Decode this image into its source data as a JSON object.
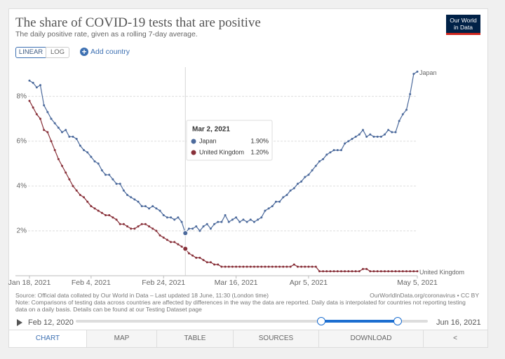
{
  "header": {
    "title": "The share of COVID-19 tests that are positive",
    "subtitle": "The daily positive rate, given as a rolling 7-day average.",
    "logo": [
      "Our World",
      "in Data"
    ]
  },
  "controls": {
    "scale_buttons": [
      "LINEAR",
      "LOG"
    ],
    "add_country": "Add country"
  },
  "chart_data": {
    "type": "line",
    "x": [
      "2021-01-18",
      "2021-01-19",
      "2021-01-20",
      "2021-01-21",
      "2021-01-22",
      "2021-01-23",
      "2021-01-24",
      "2021-01-25",
      "2021-01-26",
      "2021-01-27",
      "2021-01-28",
      "2021-01-29",
      "2021-01-30",
      "2021-01-31",
      "2021-02-01",
      "2021-02-02",
      "2021-02-03",
      "2021-02-04",
      "2021-02-05",
      "2021-02-06",
      "2021-02-07",
      "2021-02-08",
      "2021-02-09",
      "2021-02-10",
      "2021-02-11",
      "2021-02-12",
      "2021-02-13",
      "2021-02-14",
      "2021-02-15",
      "2021-02-16",
      "2021-02-17",
      "2021-02-18",
      "2021-02-19",
      "2021-02-20",
      "2021-02-21",
      "2021-02-22",
      "2021-02-23",
      "2021-02-24",
      "2021-02-25",
      "2021-02-26",
      "2021-02-27",
      "2021-02-28",
      "2021-03-01",
      "2021-03-02",
      "2021-03-03",
      "2021-03-04",
      "2021-03-05",
      "2021-03-06",
      "2021-03-07",
      "2021-03-08",
      "2021-03-09",
      "2021-03-10",
      "2021-03-11",
      "2021-03-12",
      "2021-03-13",
      "2021-03-14",
      "2021-03-15",
      "2021-03-16",
      "2021-03-17",
      "2021-03-18",
      "2021-03-19",
      "2021-03-20",
      "2021-03-21",
      "2021-03-22",
      "2021-03-23",
      "2021-03-24",
      "2021-03-25",
      "2021-03-26",
      "2021-03-27",
      "2021-03-28",
      "2021-03-29",
      "2021-03-30",
      "2021-03-31",
      "2021-04-01",
      "2021-04-02",
      "2021-04-03",
      "2021-04-04",
      "2021-04-05",
      "2021-04-06",
      "2021-04-07",
      "2021-04-08",
      "2021-04-09",
      "2021-04-10",
      "2021-04-11",
      "2021-04-12",
      "2021-04-13",
      "2021-04-14",
      "2021-04-15",
      "2021-04-16",
      "2021-04-17",
      "2021-04-18",
      "2021-04-19",
      "2021-04-20",
      "2021-04-21",
      "2021-04-22",
      "2021-04-23",
      "2021-04-24",
      "2021-04-25",
      "2021-04-26",
      "2021-04-27",
      "2021-04-28",
      "2021-04-29",
      "2021-04-30",
      "2021-05-01",
      "2021-05-02",
      "2021-05-03",
      "2021-05-04",
      "2021-05-05"
    ],
    "series": [
      {
        "name": "Japan",
        "color": "#4c6a9c",
        "values": [
          8.7,
          8.6,
          8.4,
          8.5,
          7.6,
          7.3,
          7.0,
          6.8,
          6.6,
          6.4,
          6.5,
          6.2,
          6.2,
          6.1,
          5.8,
          5.6,
          5.5,
          5.3,
          5.1,
          5.0,
          4.7,
          4.5,
          4.5,
          4.3,
          4.1,
          4.1,
          3.8,
          3.6,
          3.5,
          3.4,
          3.3,
          3.1,
          3.1,
          3.0,
          3.1,
          3.0,
          2.9,
          2.7,
          2.6,
          2.6,
          2.5,
          2.6,
          2.4,
          1.9,
          2.1,
          2.1,
          2.2,
          2.0,
          2.2,
          2.3,
          2.1,
          2.3,
          2.4,
          2.4,
          2.7,
          2.4,
          2.5,
          2.6,
          2.4,
          2.5,
          2.4,
          2.5,
          2.4,
          2.5,
          2.6,
          2.9,
          3.0,
          3.1,
          3.3,
          3.3,
          3.5,
          3.6,
          3.8,
          3.9,
          4.1,
          4.2,
          4.4,
          4.5,
          4.7,
          4.9,
          5.1,
          5.2,
          5.4,
          5.5,
          5.6,
          5.6,
          5.6,
          5.9,
          6.0,
          6.1,
          6.2,
          6.3,
          6.5,
          6.2,
          6.3,
          6.2,
          6.2,
          6.2,
          6.3,
          6.5,
          6.4,
          6.4,
          6.9,
          7.2,
          7.4,
          8.1,
          9.0,
          9.1
        ]
      },
      {
        "name": "United Kingdom",
        "color": "#883039",
        "values": [
          7.8,
          7.5,
          7.2,
          7.0,
          6.5,
          6.4,
          6.0,
          5.6,
          5.2,
          4.9,
          4.6,
          4.3,
          4.0,
          3.8,
          3.6,
          3.5,
          3.3,
          3.1,
          3.0,
          2.9,
          2.8,
          2.7,
          2.7,
          2.6,
          2.5,
          2.3,
          2.3,
          2.2,
          2.1,
          2.1,
          2.2,
          2.3,
          2.3,
          2.2,
          2.1,
          2.0,
          1.8,
          1.7,
          1.6,
          1.5,
          1.5,
          1.4,
          1.3,
          1.2,
          1.0,
          0.9,
          0.8,
          0.8,
          0.7,
          0.6,
          0.6,
          0.5,
          0.5,
          0.4,
          0.4,
          0.4,
          0.4,
          0.4,
          0.4,
          0.4,
          0.4,
          0.4,
          0.4,
          0.4,
          0.4,
          0.4,
          0.4,
          0.4,
          0.4,
          0.4,
          0.4,
          0.4,
          0.4,
          0.5,
          0.4,
          0.4,
          0.4,
          0.4,
          0.4,
          0.4,
          0.2,
          0.2,
          0.2,
          0.2,
          0.2,
          0.2,
          0.2,
          0.2,
          0.2,
          0.2,
          0.2,
          0.2,
          0.3,
          0.3,
          0.2,
          0.2,
          0.2,
          0.2,
          0.2,
          0.2,
          0.2,
          0.2,
          0.2,
          0.2,
          0.2,
          0.2,
          0.2,
          0.2
        ]
      }
    ],
    "xlim": [
      "2021-01-18",
      "2021-05-05"
    ],
    "xticks": [
      {
        "value": "2021-01-18",
        "label": "Jan 18, 2021"
      },
      {
        "value": "2021-02-04",
        "label": "Feb 4, 2021"
      },
      {
        "value": "2021-02-24",
        "label": "Feb 24, 2021"
      },
      {
        "value": "2021-03-16",
        "label": "Mar 16, 2021"
      },
      {
        "value": "2021-04-05",
        "label": "Apr 5, 2021"
      },
      {
        "value": "2021-05-05",
        "label": "May 5, 2021"
      }
    ],
    "ylim": [
      0,
      9.3
    ],
    "yticks": [
      {
        "value": 2,
        "label": "2%"
      },
      {
        "value": 4,
        "label": "4%"
      },
      {
        "value": 6,
        "label": "6%"
      },
      {
        "value": 8,
        "label": "8%"
      }
    ],
    "grid": true,
    "tooltip": {
      "x": "2021-03-02",
      "title": "Mar 2, 2021",
      "labels": [
        "1.90%",
        "1.20%"
      ]
    }
  },
  "footer": {
    "source": "Source: Official data collated by Our World in Data – Last updated 18 June, 11:30 (London time)",
    "url": "OurWorldInData.org/coronavirus • CC BY",
    "note": "Note: Comparisons of testing data across countries are affected by differences in the way the data are reported. Daily data is interpolated for countries not reporting testing data on a daily basis. Details can be found at our Testing Dataset page"
  },
  "timeline": {
    "start": "Feb 12, 2020",
    "end": "Jun 16, 2021"
  },
  "tabs": [
    "CHART",
    "MAP",
    "TABLE",
    "SOURCES",
    "DOWNLOAD"
  ]
}
